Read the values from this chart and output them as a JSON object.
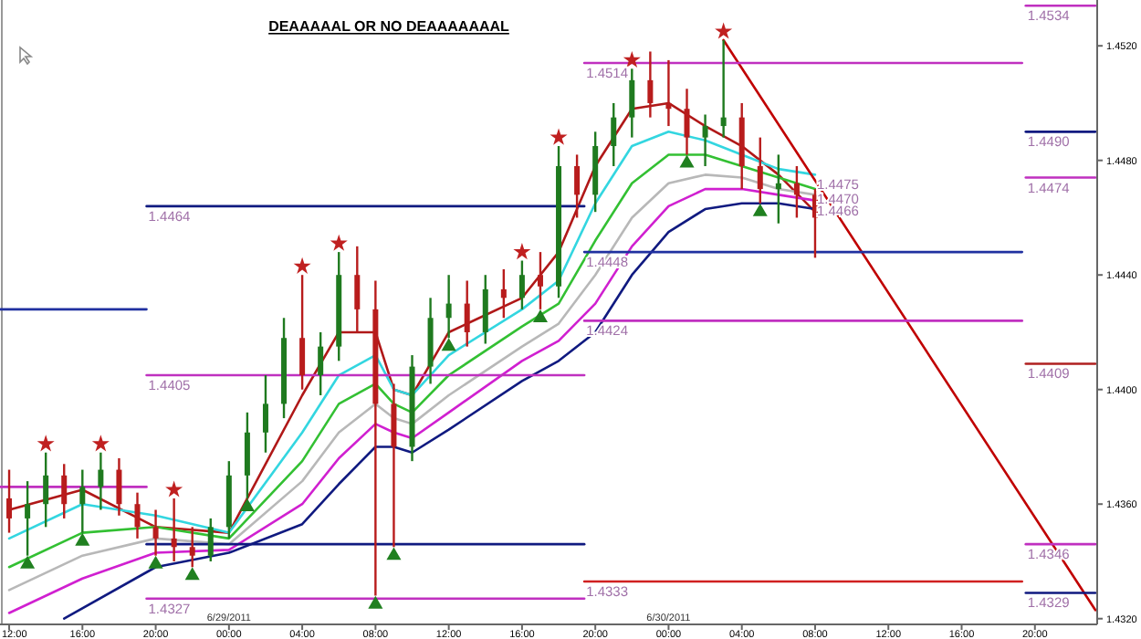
{
  "chart_data": {
    "type": "candlestick",
    "title": "DEAAAAAL OR NO DEAAAAAAAL",
    "x": [
      "2011-06-28T12:00",
      "2011-06-28T13:00",
      "2011-06-28T14:00",
      "2011-06-28T15:00",
      "2011-06-28T16:00",
      "2011-06-28T17:00",
      "2011-06-28T18:00",
      "2011-06-28T19:00",
      "2011-06-28T20:00",
      "2011-06-28T21:00",
      "2011-06-28T22:00",
      "2011-06-28T23:00",
      "2011-06-29T00:00",
      "2011-06-29T01:00",
      "2011-06-29T02:00",
      "2011-06-29T03:00",
      "2011-06-29T04:00",
      "2011-06-29T05:00",
      "2011-06-29T06:00",
      "2011-06-29T07:00",
      "2011-06-29T08:00",
      "2011-06-29T09:00",
      "2011-06-29T10:00",
      "2011-06-29T11:00",
      "2011-06-29T12:00",
      "2011-06-29T13:00",
      "2011-06-29T14:00",
      "2011-06-29T15:00",
      "2011-06-29T16:00",
      "2011-06-29T17:00",
      "2011-06-29T18:00",
      "2011-06-29T19:00",
      "2011-06-29T20:00",
      "2011-06-29T21:00",
      "2011-06-29T22:00",
      "2011-06-29T23:00",
      "2011-06-30T00:00",
      "2011-06-30T01:00",
      "2011-06-30T02:00",
      "2011-06-30T03:00",
      "2011-06-30T04:00",
      "2011-06-30T05:00",
      "2011-06-30T06:00",
      "2011-06-30T07:00",
      "2011-06-30T08:00"
    ],
    "ohlc": [
      [
        1.4362,
        1.4372,
        1.435,
        1.4355
      ],
      [
        1.4355,
        1.4368,
        1.4342,
        1.436
      ],
      [
        1.436,
        1.4378,
        1.4352,
        1.437
      ],
      [
        1.437,
        1.4374,
        1.4355,
        1.436
      ],
      [
        1.436,
        1.4372,
        1.435,
        1.4366
      ],
      [
        1.4366,
        1.4378,
        1.4358,
        1.4372
      ],
      [
        1.4372,
        1.4376,
        1.4356,
        1.436
      ],
      [
        1.436,
        1.4364,
        1.4348,
        1.4352
      ],
      [
        1.4352,
        1.4358,
        1.4342,
        1.4348
      ],
      [
        1.4348,
        1.4362,
        1.434,
        1.4345
      ],
      [
        1.4345,
        1.4352,
        1.4338,
        1.4342
      ],
      [
        1.4342,
        1.4355,
        1.434,
        1.4352
      ],
      [
        1.4352,
        1.4375,
        1.4348,
        1.437
      ],
      [
        1.437,
        1.4392,
        1.4362,
        1.4385
      ],
      [
        1.4385,
        1.4405,
        1.4378,
        1.4395
      ],
      [
        1.4395,
        1.4425,
        1.439,
        1.4418
      ],
      [
        1.4418,
        1.444,
        1.44,
        1.4405
      ],
      [
        1.4405,
        1.442,
        1.4398,
        1.4415
      ],
      [
        1.4415,
        1.4448,
        1.441,
        1.444
      ],
      [
        1.444,
        1.445,
        1.442,
        1.4428
      ],
      [
        1.4428,
        1.4438,
        1.4328,
        1.4395
      ],
      [
        1.4395,
        1.4402,
        1.4345,
        1.438
      ],
      [
        1.438,
        1.4412,
        1.4375,
        1.4408
      ],
      [
        1.4408,
        1.4432,
        1.4402,
        1.4425
      ],
      [
        1.4425,
        1.444,
        1.4418,
        1.443
      ],
      [
        1.443,
        1.4438,
        1.4415,
        1.442
      ],
      [
        1.442,
        1.444,
        1.4416,
        1.4435
      ],
      [
        1.4435,
        1.4442,
        1.4425,
        1.4432
      ],
      [
        1.4432,
        1.4445,
        1.4428,
        1.444
      ],
      [
        1.444,
        1.4448,
        1.4428,
        1.4436
      ],
      [
        1.4436,
        1.4485,
        1.4432,
        1.4478
      ],
      [
        1.4478,
        1.4482,
        1.446,
        1.4468
      ],
      [
        1.4468,
        1.449,
        1.4462,
        1.4485
      ],
      [
        1.4485,
        1.45,
        1.4478,
        1.4495
      ],
      [
        1.4495,
        1.4512,
        1.4488,
        1.4508
      ],
      [
        1.4508,
        1.4518,
        1.4495,
        1.45
      ],
      [
        1.45,
        1.4515,
        1.4492,
        1.4498
      ],
      [
        1.4498,
        1.4505,
        1.4482,
        1.4488
      ],
      [
        1.4488,
        1.4496,
        1.4478,
        1.4492
      ],
      [
        1.4492,
        1.4522,
        1.4488,
        1.4495
      ],
      [
        1.4495,
        1.45,
        1.447,
        1.4478
      ],
      [
        1.4478,
        1.4488,
        1.4465,
        1.447
      ],
      [
        1.447,
        1.4482,
        1.4458,
        1.4472
      ],
      [
        1.4472,
        1.4478,
        1.446,
        1.4468
      ],
      [
        1.4468,
        1.447,
        1.4446,
        1.446
      ]
    ],
    "series": [
      {
        "type": "line",
        "color": "#b01818",
        "x": [
          "2011-06-28T12:00",
          "2011-06-28T16:00",
          "2011-06-28T20:00",
          "2011-06-29T00:00",
          "2011-06-29T04:00",
          "2011-06-29T06:00",
          "2011-06-29T08:00",
          "2011-06-29T09:00",
          "2011-06-29T10:00",
          "2011-06-29T12:00",
          "2011-06-29T16:00",
          "2011-06-29T18:00",
          "2011-06-29T20:00",
          "2011-06-29T22:00",
          "2011-06-30T00:00",
          "2011-06-30T02:00",
          "2011-06-30T04:00",
          "2011-06-30T06:00",
          "2011-06-30T08:00"
        ],
        "values": [
          1.4358,
          1.4365,
          1.4352,
          1.435,
          1.4398,
          1.442,
          1.442,
          1.44,
          1.4398,
          1.442,
          1.4432,
          1.4448,
          1.4478,
          1.4498,
          1.45,
          1.4492,
          1.4485,
          1.4475,
          1.4462
        ]
      },
      {
        "type": "line",
        "color": "#33d6e0",
        "x": [
          "2011-06-28T12:00",
          "2011-06-28T16:00",
          "2011-06-28T20:00",
          "2011-06-29T00:00",
          "2011-06-29T04:00",
          "2011-06-29T06:00",
          "2011-06-29T08:00",
          "2011-06-29T09:00",
          "2011-06-29T10:00",
          "2011-06-29T12:00",
          "2011-06-29T16:00",
          "2011-06-29T18:00",
          "2011-06-29T20:00",
          "2011-06-29T22:00",
          "2011-06-30T00:00",
          "2011-06-30T02:00",
          "2011-06-30T04:00",
          "2011-06-30T06:00",
          "2011-06-30T08:00"
        ],
        "values": [
          1.4348,
          1.436,
          1.4356,
          1.435,
          1.4385,
          1.4405,
          1.4412,
          1.44,
          1.4398,
          1.4412,
          1.4428,
          1.4438,
          1.4465,
          1.4485,
          1.449,
          1.4487,
          1.4482,
          1.4477,
          1.4475
        ]
      },
      {
        "type": "line",
        "color": "#33c033",
        "x": [
          "2011-06-28T12:00",
          "2011-06-28T16:00",
          "2011-06-28T20:00",
          "2011-06-29T00:00",
          "2011-06-29T04:00",
          "2011-06-29T06:00",
          "2011-06-29T08:00",
          "2011-06-29T09:00",
          "2011-06-29T10:00",
          "2011-06-29T12:00",
          "2011-06-29T16:00",
          "2011-06-29T18:00",
          "2011-06-29T20:00",
          "2011-06-29T22:00",
          "2011-06-30T00:00",
          "2011-06-30T02:00",
          "2011-06-30T04:00",
          "2011-06-30T06:00",
          "2011-06-30T08:00"
        ],
        "values": [
          1.4338,
          1.435,
          1.4352,
          1.4348,
          1.4375,
          1.4395,
          1.4402,
          1.4395,
          1.4392,
          1.4405,
          1.4422,
          1.443,
          1.4452,
          1.4472,
          1.4482,
          1.4482,
          1.4478,
          1.4474,
          1.447
        ]
      },
      {
        "type": "line",
        "color": "#b8b8b8",
        "x": [
          "2011-06-28T12:00",
          "2011-06-28T16:00",
          "2011-06-28T20:00",
          "2011-06-29T00:00",
          "2011-06-29T04:00",
          "2011-06-29T06:00",
          "2011-06-29T08:00",
          "2011-06-29T09:00",
          "2011-06-29T10:00",
          "2011-06-29T12:00",
          "2011-06-29T16:00",
          "2011-06-29T18:00",
          "2011-06-29T20:00",
          "2011-06-29T22:00",
          "2011-06-30T00:00",
          "2011-06-30T02:00",
          "2011-06-30T04:00",
          "2011-06-30T06:00",
          "2011-06-30T08:00"
        ],
        "values": [
          1.433,
          1.4342,
          1.4348,
          1.4346,
          1.4368,
          1.4385,
          1.4395,
          1.439,
          1.4388,
          1.4398,
          1.4415,
          1.4423,
          1.444,
          1.446,
          1.4472,
          1.4475,
          1.4474,
          1.447,
          1.4468
        ]
      },
      {
        "type": "line",
        "color": "#d020d0",
        "x": [
          "2011-06-28T12:00",
          "2011-06-28T16:00",
          "2011-06-28T20:00",
          "2011-06-29T00:00",
          "2011-06-29T04:00",
          "2011-06-29T06:00",
          "2011-06-29T08:00",
          "2011-06-29T09:00",
          "2011-06-29T10:00",
          "2011-06-29T12:00",
          "2011-06-29T16:00",
          "2011-06-29T18:00",
          "2011-06-29T20:00",
          "2011-06-29T22:00",
          "2011-06-30T00:00",
          "2011-06-30T02:00",
          "2011-06-30T04:00",
          "2011-06-30T06:00",
          "2011-06-30T08:00"
        ],
        "values": [
          1.4322,
          1.4334,
          1.4343,
          1.4344,
          1.436,
          1.4376,
          1.4388,
          1.4385,
          1.4383,
          1.4392,
          1.441,
          1.4417,
          1.443,
          1.445,
          1.4464,
          1.447,
          1.447,
          1.4468,
          1.4466
        ]
      },
      {
        "type": "line",
        "color": "#101a80",
        "x": [
          "2011-06-28T15:00",
          "2011-06-28T20:00",
          "2011-06-29T00:00",
          "2011-06-29T04:00",
          "2011-06-29T06:00",
          "2011-06-29T08:00",
          "2011-06-29T09:00",
          "2011-06-29T10:00",
          "2011-06-29T12:00",
          "2011-06-29T16:00",
          "2011-06-29T18:00",
          "2011-06-29T20:00",
          "2011-06-29T22:00",
          "2011-06-30T00:00",
          "2011-06-30T02:00",
          "2011-06-30T04:00",
          "2011-06-30T06:00",
          "2011-06-30T08:00"
        ],
        "values": [
          1.432,
          1.4338,
          1.4343,
          1.4353,
          1.4367,
          1.438,
          1.438,
          1.4378,
          1.4386,
          1.4403,
          1.441,
          1.442,
          1.444,
          1.4455,
          1.4463,
          1.4465,
          1.4465,
          1.4463
        ]
      },
      {
        "type": "scatter",
        "marker": "star",
        "color": "#c02020",
        "x": [
          "2011-06-28T14:00",
          "2011-06-28T17:00",
          "2011-06-28T21:00",
          "2011-06-29T04:00",
          "2011-06-29T06:00",
          "2011-06-29T16:00",
          "2011-06-29T18:00",
          "2011-06-29T22:00",
          "2011-06-30T03:00"
        ],
        "values": [
          1.4381,
          1.4381,
          1.4365,
          1.4443,
          1.4451,
          1.4448,
          1.4488,
          1.4515,
          1.4525
        ]
      },
      {
        "type": "scatter",
        "marker": "triangle",
        "color": "#208020",
        "x": [
          "2011-06-28T13:00",
          "2011-06-28T16:00",
          "2011-06-28T20:00",
          "2011-06-28T22:00",
          "2011-06-29T01:00",
          "2011-06-29T08:00",
          "2011-06-29T09:00",
          "2011-06-29T12:00",
          "2011-06-29T17:00",
          "2011-06-30T01:00",
          "2011-06-30T05:00"
        ],
        "values": [
          1.4339,
          1.4347,
          1.4339,
          1.4335,
          1.4359,
          1.4325,
          1.4342,
          1.4415,
          1.4425,
          1.4479,
          1.4462
        ]
      },
      {
        "type": "line",
        "color": "#c00000",
        "x": [
          "2011-06-30T03:00",
          "2011-06-30T23:18"
        ],
        "values": [
          1.4522,
          1.4323
        ]
      },
      {
        "type": "line",
        "color": "#c030c0",
        "x": [
          "2011-06-30T19:30",
          "2011-06-30T23:18"
        ],
        "values": [
          1.4534,
          1.4534
        ]
      },
      {
        "type": "line",
        "color": "#c030c0",
        "x": [
          "2011-06-29T19:24",
          "2011-06-30T19:18"
        ],
        "values": [
          1.4514,
          1.4514
        ]
      },
      {
        "type": "line",
        "color": "#101a80",
        "x": [
          "2011-06-30T19:30",
          "2011-06-30T23:18"
        ],
        "values": [
          1.449,
          1.449
        ]
      },
      {
        "type": "line",
        "color": "#c030c0",
        "x": [
          "2011-06-30T19:30",
          "2011-06-30T23:18"
        ],
        "values": [
          1.4474,
          1.4474
        ]
      },
      {
        "type": "line",
        "color": "#101a80",
        "x": [
          "2011-06-28T19:30",
          "2011-06-29T19:24"
        ],
        "values": [
          1.4464,
          1.4464
        ]
      },
      {
        "type": "line",
        "color": "#2030a0",
        "x": [
          "2011-06-29T19:24",
          "2011-06-30T19:18"
        ],
        "values": [
          1.4448,
          1.4448
        ]
      },
      {
        "type": "line",
        "color": "#c030c0",
        "x": [
          "2011-06-29T19:24",
          "2011-06-30T19:18"
        ],
        "values": [
          1.4424,
          1.4424
        ]
      },
      {
        "type": "line",
        "color": "#b02020",
        "x": [
          "2011-06-30T19:30",
          "2011-06-30T23:18"
        ],
        "values": [
          1.4409,
          1.4409
        ]
      },
      {
        "type": "line",
        "color": "#c030c0",
        "x": [
          "2011-06-28T19:30",
          "2011-06-29T19:24"
        ],
        "values": [
          1.4405,
          1.4405
        ]
      },
      {
        "type": "line",
        "color": "#2030a0",
        "x": [
          "2011-06-28T11:30",
          "2011-06-28T19:30"
        ],
        "values": [
          1.4428,
          1.4428
        ]
      },
      {
        "type": "line",
        "color": "#c030c0",
        "x": [
          "2011-06-28T11:30",
          "2011-06-28T19:30"
        ],
        "values": [
          1.4366,
          1.4366
        ]
      },
      {
        "type": "line",
        "color": "#101a80",
        "x": [
          "2011-06-28T19:30",
          "2011-06-29T19:24"
        ],
        "values": [
          1.4346,
          1.4346
        ]
      },
      {
        "type": "line",
        "color": "#c030c0",
        "x": [
          "2011-06-30T19:30",
          "2011-06-30T23:18"
        ],
        "values": [
          1.4346,
          1.4346
        ]
      },
      {
        "type": "line",
        "color": "#d02020",
        "x": [
          "2011-06-29T19:24",
          "2011-06-30T19:18"
        ],
        "values": [
          1.4333,
          1.4333
        ]
      },
      {
        "type": "line",
        "color": "#c030c0",
        "x": [
          "2011-06-28T19:30",
          "2011-06-29T19:24"
        ],
        "values": [
          1.4327,
          1.4327
        ]
      },
      {
        "type": "line",
        "color": "#101a80",
        "x": [
          "2011-06-30T19:30",
          "2011-06-30T23:18"
        ],
        "values": [
          1.4329,
          1.4329
        ]
      }
    ],
    "xlim": [
      "2011-06-28T11:30",
      "2011-06-30T23:24"
    ],
    "ylim": [
      1.4318,
      1.4536
    ],
    "xticks": [
      {
        "value": "2011-06-28T12:00",
        "label": "12:00"
      },
      {
        "value": "2011-06-28T16:00",
        "label": "16:00"
      },
      {
        "value": "2011-06-28T20:00",
        "label": "20:00"
      },
      {
        "value": "2011-06-29T00:00",
        "label": "00:00"
      },
      {
        "value": "2011-06-29T04:00",
        "label": "04:00"
      },
      {
        "value": "2011-06-29T08:00",
        "label": "08:00"
      },
      {
        "value": "2011-06-29T12:00",
        "label": "12:00"
      },
      {
        "value": "2011-06-29T16:00",
        "label": "16:00"
      },
      {
        "value": "2011-06-29T20:00",
        "label": "20:00"
      },
      {
        "value": "2011-06-30T00:00",
        "label": "00:00"
      },
      {
        "value": "2011-06-30T04:00",
        "label": "04:00"
      },
      {
        "value": "2011-06-30T08:00",
        "label": "08:00"
      },
      {
        "value": "2011-06-30T12:00",
        "label": "12:00"
      },
      {
        "value": "2011-06-30T16:00",
        "label": "16:00"
      },
      {
        "value": "2011-06-30T20:00",
        "label": "20:00"
      }
    ],
    "yticks": [
      {
        "value": 1.452,
        "label": "1.4520"
      },
      {
        "value": 1.448,
        "label": "1.4480"
      },
      {
        "value": 1.444,
        "label": "1.4440"
      },
      {
        "value": 1.44,
        "label": "1.4400"
      },
      {
        "value": 1.436,
        "label": "1.4360"
      },
      {
        "value": 1.432,
        "label": "1.4320"
      }
    ],
    "annotations": [
      {
        "text": "1.4534",
        "x": "2011-06-30T19:30",
        "y": 1.4534
      },
      {
        "text": "1.4514",
        "x": "2011-06-29T19:24",
        "y": 1.4514
      },
      {
        "text": "1.4490",
        "x": "2011-06-30T19:30",
        "y": 1.449
      },
      {
        "text": "1.4474",
        "x": "2011-06-30T19:30",
        "y": 1.4474
      },
      {
        "text": "1.4464",
        "x": "2011-06-28T19:30",
        "y": 1.4464
      },
      {
        "text": "1.4448",
        "x": "2011-06-29T19:24",
        "y": 1.4448
      },
      {
        "text": "1.4424",
        "x": "2011-06-29T19:24",
        "y": 1.4424
      },
      {
        "text": "1.4409",
        "x": "2011-06-30T19:30",
        "y": 1.4409
      },
      {
        "text": "1.4405",
        "x": "2011-06-28T19:30",
        "y": 1.4405
      },
      {
        "text": "1.4346",
        "x": "2011-06-30T19:30",
        "y": 1.4346
      },
      {
        "text": "1.4333",
        "x": "2011-06-29T19:24",
        "y": 1.4333
      },
      {
        "text": "1.4327",
        "x": "2011-06-28T19:30",
        "y": 1.4327
      },
      {
        "text": "1.4329",
        "x": "2011-06-30T19:30",
        "y": 1.4329
      },
      {
        "text": "1.4475",
        "x": "2011-06-30T08:00",
        "y": 1.4475
      },
      {
        "text": "1.4470",
        "x": "2011-06-30T08:00",
        "y": 1.447
      },
      {
        "text": "1.4466",
        "x": "2011-06-30T08:00",
        "y": 1.4466
      },
      "6/29/2011",
      "6/30/2011"
    ],
    "grid": false
  }
}
